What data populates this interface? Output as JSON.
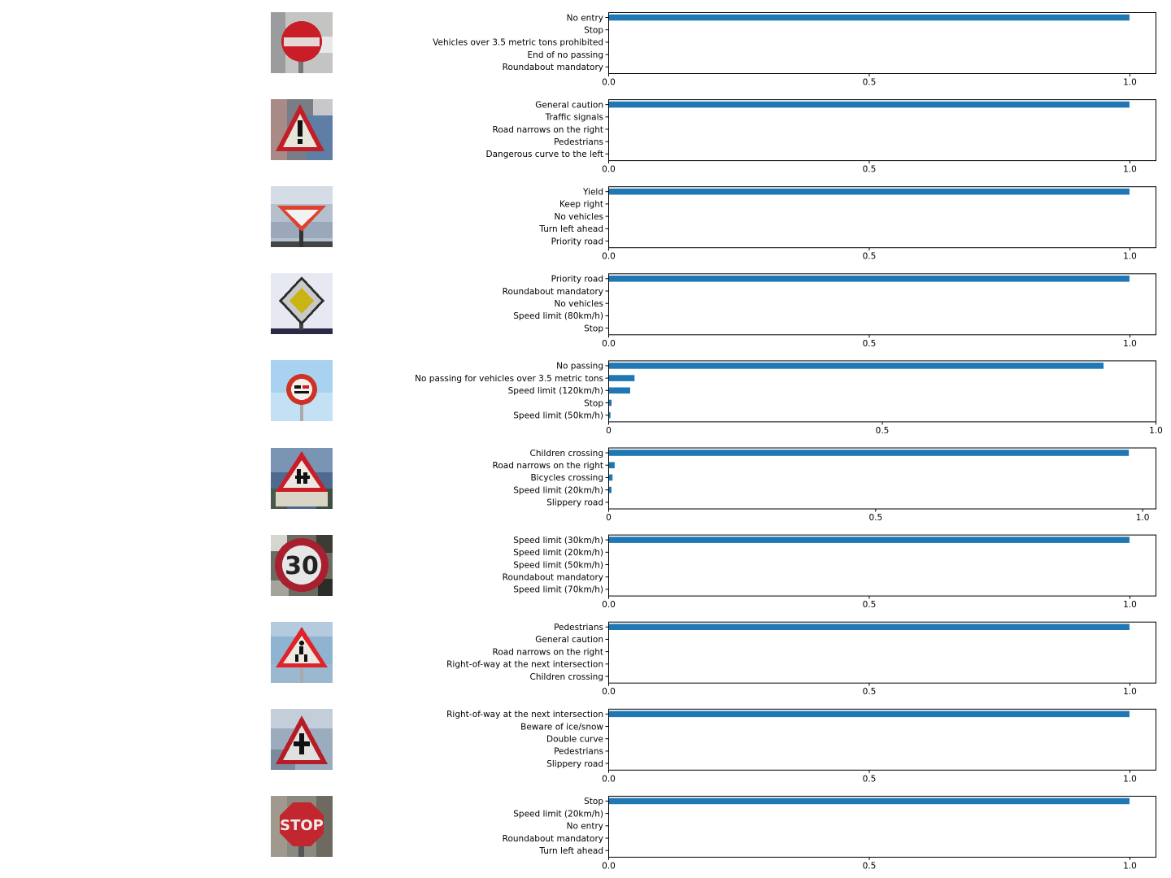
{
  "bar_color": "#1f77b4",
  "thumbnails": [
    {
      "icon": "no-entry-sign-icon",
      "bg": "#b8b8b6"
    },
    {
      "icon": "general-caution-sign-icon",
      "bg": "#8a8f9a"
    },
    {
      "icon": "yield-sign-icon",
      "bg": "#a9b6c6"
    },
    {
      "icon": "priority-road-sign-icon",
      "bg": "#dfe4ee"
    },
    {
      "icon": "no-passing-sign-icon",
      "bg": "#a8d0ee"
    },
    {
      "icon": "children-crossing-sign-icon",
      "bg": "#5e7a9a"
    },
    {
      "icon": "speed-limit-30-sign-icon",
      "bg": "#6e6e66"
    },
    {
      "icon": "pedestrians-sign-icon",
      "bg": "#8fb0cc"
    },
    {
      "icon": "right-of-way-sign-icon",
      "bg": "#9eaebe"
    },
    {
      "icon": "stop-sign-icon",
      "bg": "#8a8a80"
    }
  ],
  "chart_data": [
    {
      "type": "bar",
      "orientation": "horizontal",
      "categories": [
        "No entry",
        "Stop",
        "Vehicles over 3.5 metric tons prohibited",
        "End of no passing",
        "Roundabout mandatory"
      ],
      "values": [
        1.0,
        0.0,
        0.0,
        0.0,
        0.0
      ],
      "xlim": [
        0,
        1.05
      ],
      "xticks": [
        "0.0",
        "0.5",
        "1.0"
      ],
      "xtick_values": [
        0,
        0.5,
        1.0
      ]
    },
    {
      "type": "bar",
      "orientation": "horizontal",
      "categories": [
        "General caution",
        "Traffic signals",
        "Road narrows on the right",
        "Pedestrians",
        "Dangerous curve to the left"
      ],
      "values": [
        1.0,
        0.0,
        0.0,
        0.0,
        0.0
      ],
      "xlim": [
        0,
        1.05
      ],
      "xticks": [
        "0.0",
        "0.5",
        "1.0"
      ],
      "xtick_values": [
        0,
        0.5,
        1.0
      ]
    },
    {
      "type": "bar",
      "orientation": "horizontal",
      "categories": [
        "Yield",
        "Keep right",
        "No vehicles",
        "Turn left ahead",
        "Priority road"
      ],
      "values": [
        1.0,
        0.0,
        0.0,
        0.0,
        0.0
      ],
      "xlim": [
        0,
        1.05
      ],
      "xticks": [
        "0.0",
        "0.5",
        "1.0"
      ],
      "xtick_values": [
        0,
        0.5,
        1.0
      ]
    },
    {
      "type": "bar",
      "orientation": "horizontal",
      "categories": [
        "Priority road",
        "Roundabout mandatory",
        "No vehicles",
        "Speed limit (80km/h)",
        "Stop"
      ],
      "values": [
        1.0,
        0.0,
        0.0,
        0.0,
        0.0
      ],
      "xlim": [
        0,
        1.05
      ],
      "xticks": [
        "0.0",
        "0.5",
        "1.0"
      ],
      "xtick_values": [
        0,
        0.5,
        1.0
      ]
    },
    {
      "type": "bar",
      "orientation": "horizontal",
      "categories": [
        "No passing",
        "No passing for vehicles over 3.5 metric tons",
        "Speed limit (120km/h)",
        "Stop",
        "Speed limit (50km/h)"
      ],
      "values": [
        0.905,
        0.048,
        0.04,
        0.006,
        0.004
      ],
      "xlim": [
        0,
        1.0
      ],
      "xticks": [
        "0",
        "0.5",
        "1.0"
      ],
      "xtick_values": [
        0,
        0.5,
        1.0
      ]
    },
    {
      "type": "bar",
      "orientation": "horizontal",
      "categories": [
        "Children crossing",
        "Road narrows on the right",
        "Bicycles crossing",
        "Speed limit (20km/h)",
        "Slippery road"
      ],
      "values": [
        0.975,
        0.012,
        0.008,
        0.006,
        0.001
      ],
      "xlim": [
        0,
        1.025
      ],
      "xticks": [
        "0",
        "0.5",
        "1.0"
      ],
      "xtick_values": [
        0,
        0.5,
        1.0
      ]
    },
    {
      "type": "bar",
      "orientation": "horizontal",
      "categories": [
        "Speed limit (30km/h)",
        "Speed limit (20km/h)",
        "Speed limit (50km/h)",
        "Roundabout mandatory",
        "Speed limit (70km/h)"
      ],
      "values": [
        1.0,
        0.0,
        0.0,
        0.0,
        0.0
      ],
      "xlim": [
        0,
        1.05
      ],
      "xticks": [
        "0.0",
        "0.5",
        "1.0"
      ],
      "xtick_values": [
        0,
        0.5,
        1.0
      ]
    },
    {
      "type": "bar",
      "orientation": "horizontal",
      "categories": [
        "Pedestrians",
        "General caution",
        "Road narrows on the right",
        "Right-of-way at the next intersection",
        "Children crossing"
      ],
      "values": [
        1.0,
        0.0,
        0.0,
        0.0,
        0.0
      ],
      "xlim": [
        0,
        1.05
      ],
      "xticks": [
        "0.0",
        "0.5",
        "1.0"
      ],
      "xtick_values": [
        0,
        0.5,
        1.0
      ]
    },
    {
      "type": "bar",
      "orientation": "horizontal",
      "categories": [
        "Right-of-way at the next intersection",
        "Beware of ice/snow",
        "Double curve",
        "Pedestrians",
        "Slippery road"
      ],
      "values": [
        1.0,
        0.0,
        0.0,
        0.0,
        0.0
      ],
      "xlim": [
        0,
        1.05
      ],
      "xticks": [
        "0.0",
        "0.5",
        "1.0"
      ],
      "xtick_values": [
        0,
        0.5,
        1.0
      ]
    },
    {
      "type": "bar",
      "orientation": "horizontal",
      "categories": [
        "Stop",
        "Speed limit (20km/h)",
        "No entry",
        "Roundabout mandatory",
        "Turn left ahead"
      ],
      "values": [
        1.0,
        0.0,
        0.0,
        0.0,
        0.0
      ],
      "xlim": [
        0,
        1.05
      ],
      "xticks": [
        "0.0",
        "0.5",
        "1.0"
      ],
      "xtick_values": [
        0,
        0.5,
        1.0
      ]
    }
  ]
}
